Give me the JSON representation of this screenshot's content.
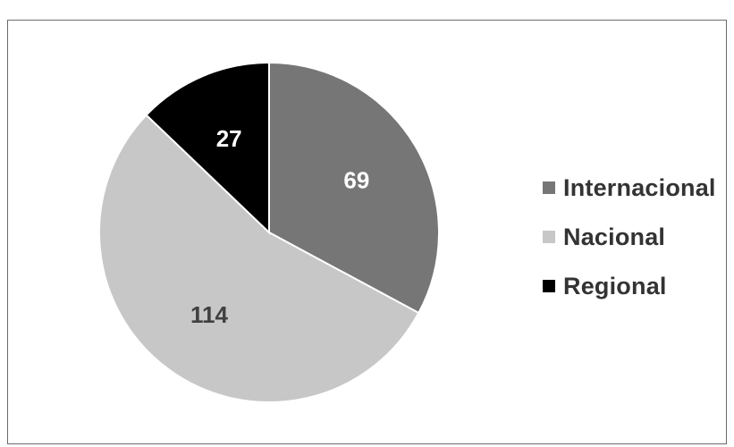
{
  "chart_data": {
    "type": "pie",
    "title": "",
    "categories": [
      "Internacional",
      "Nacional",
      "Regional"
    ],
    "values": [
      69,
      114,
      27
    ],
    "colors": [
      "#767676",
      "#c7c7c7",
      "#000000"
    ],
    "label_colors": [
      "#ffffff",
      "#404040",
      "#ffffff"
    ],
    "legend_position": "right",
    "start": "12-o'clock",
    "direction": "clockwise"
  }
}
